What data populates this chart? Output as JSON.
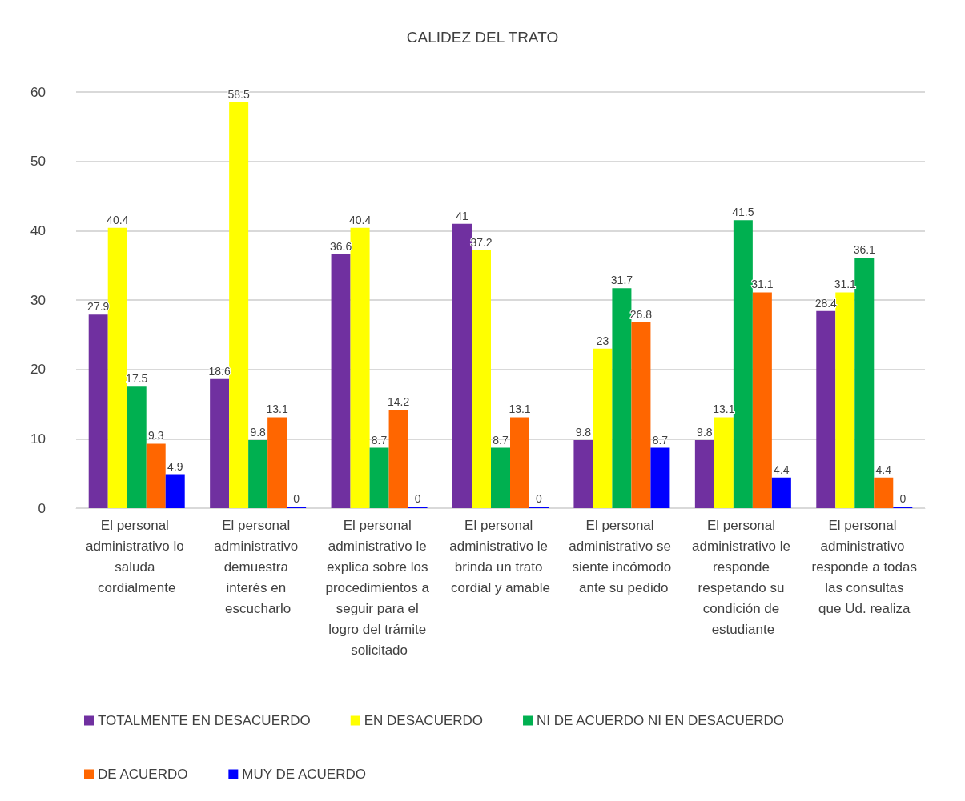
{
  "chart_data": {
    "type": "bar",
    "title": "CALIDEZ DEL TRATO",
    "categories": [
      "El personal administrativo lo saluda cordialmente",
      "El personal administrativo demuestra interés en escucharlo",
      "El personal administrativo le explica sobre los procedimientos a seguir para el logro del trámite solicitado",
      "El personal administrativo le brinda un trato cordial y amable",
      "El personal administrativo se siente incómodo ante su pedido",
      "El personal administrativo le responde respetando su condición de estudiante",
      "El personal administrativo responde a todas las consultas que Ud. realiza"
    ],
    "series": [
      {
        "name": "TOTALMENTE EN DESACUERDO",
        "color": "#7030a0",
        "values": [
          27.9,
          18.6,
          36.6,
          41,
          9.8,
          9.8,
          28.4
        ]
      },
      {
        "name": "EN DESACUERDO",
        "color": "#ffff00",
        "values": [
          40.4,
          58.5,
          40.4,
          37.2,
          23,
          13.1,
          31.1
        ]
      },
      {
        "name": "NI DE ACUERDO NI EN DESACUERDO",
        "color": "#00b050",
        "values": [
          17.5,
          9.8,
          8.7,
          8.7,
          31.7,
          41.5,
          36.1
        ]
      },
      {
        "name": "DE ACUERDO",
        "color": "#ff6600",
        "values": [
          9.3,
          13.1,
          14.2,
          13.1,
          26.8,
          31.1,
          4.4
        ]
      },
      {
        "name": "MUY DE ACUERDO",
        "color": "#0000ff",
        "values": [
          4.9,
          0,
          0,
          0,
          8.7,
          4.4,
          0
        ]
      }
    ],
    "ylim": [
      0,
      60
    ],
    "yticks": [
      0,
      10,
      20,
      30,
      40,
      50,
      60
    ],
    "grid": true,
    "legend": "bottom",
    "data_labels": true
  }
}
